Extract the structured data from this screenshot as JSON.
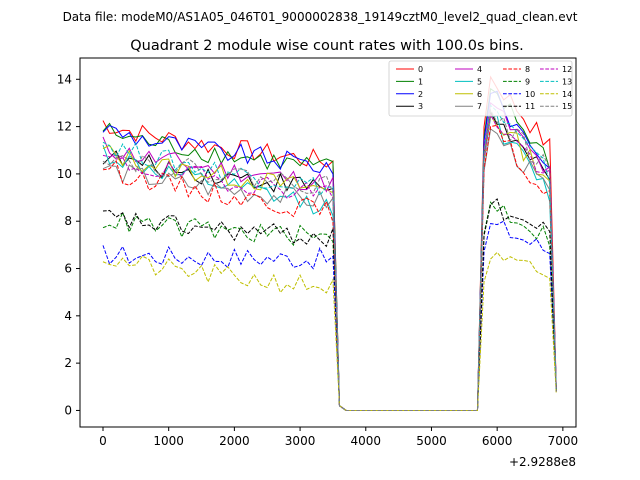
{
  "chart_data": {
    "type": "line",
    "suptitle": "Data file: modeM0/AS1A05_046T01_9000002838_19149cztM0_level2_quad_clean.evt",
    "title": "Quadrant 2 module wise count rates with 100.0s bins.",
    "xlabel": "",
    "ylabel": "",
    "x_offset_label": "+2.9288e8",
    "xlim": [
      -350,
      7200
    ],
    "ylim": [
      -0.7,
      14.9
    ],
    "xticks": [
      0,
      1000,
      2000,
      3000,
      4000,
      5000,
      6000,
      7000
    ],
    "yticks": [
      0,
      2,
      4,
      6,
      8,
      10,
      12,
      14
    ],
    "legend_position": "top-right",
    "segments": [
      {
        "x_start": 0,
        "x_end": 3500,
        "count": 36
      },
      {
        "x_start": 3600,
        "x_end": 5700,
        "count": 22
      },
      {
        "x_start": 5800,
        "x_end": 6900,
        "count": 12
      }
    ],
    "series": [
      {
        "name": "0",
        "color": "#ff0000",
        "dash": "solid",
        "start": 12.2,
        "end": 10.5,
        "peak": 14.1,
        "late": 10.8,
        "final": 0.9
      },
      {
        "name": "1",
        "color": "#008000",
        "dash": "solid",
        "start": 11.9,
        "end": 10.2,
        "peak": 13.6,
        "late": 10.2,
        "final": 0.8
      },
      {
        "name": "2",
        "color": "#0000ff",
        "dash": "solid",
        "start": 12.0,
        "end": 10.3,
        "peak": 13.4,
        "late": 10.0,
        "final": 0.9
      },
      {
        "name": "3",
        "color": "#000000",
        "dash": "solid",
        "start": 10.8,
        "end": 9.4,
        "peak": 12.6,
        "late": 9.3,
        "final": 0.8
      },
      {
        "name": "4",
        "color": "#bf00bf",
        "dash": "solid",
        "start": 11.2,
        "end": 9.6,
        "peak": 13.0,
        "late": 9.6,
        "final": 0.8
      },
      {
        "name": "5",
        "color": "#00bfbf",
        "dash": "solid",
        "start": 11.0,
        "end": 8.6,
        "peak": 12.4,
        "late": 8.8,
        "final": 0.8
      },
      {
        "name": "6",
        "color": "#bfbf00",
        "dash": "solid",
        "start": 11.0,
        "end": 9.3,
        "peak": 12.5,
        "late": 9.5,
        "final": 0.8
      },
      {
        "name": "7",
        "color": "#808080",
        "dash": "solid",
        "start": 10.3,
        "end": 8.8,
        "peak": 11.9,
        "late": 8.9,
        "final": 0.8
      },
      {
        "name": "8",
        "color": "#ff0000",
        "dash": "dashed",
        "start": 10.4,
        "end": 8.4,
        "peak": 12.0,
        "late": 8.6,
        "final": 0.8
      },
      {
        "name": "9",
        "color": "#008000",
        "dash": "dashed",
        "start": 8.1,
        "end": 7.3,
        "peak": 8.8,
        "late": 7.1,
        "final": 0.8
      },
      {
        "name": "10",
        "color": "#0000ff",
        "dash": "dashed",
        "start": 6.6,
        "end": 6.4,
        "peak": 7.9,
        "late": 6.6,
        "final": 0.8
      },
      {
        "name": "11",
        "color": "#000000",
        "dash": "dashed",
        "start": 8.2,
        "end": 7.3,
        "peak": 8.7,
        "late": 7.3,
        "final": 0.8
      },
      {
        "name": "12",
        "color": "#bf00bf",
        "dash": "dashed",
        "start": 10.7,
        "end": 9.2,
        "peak": 12.5,
        "late": 9.5,
        "final": 0.8
      },
      {
        "name": "13",
        "color": "#00bfbf",
        "dash": "dashed",
        "start": 11.4,
        "end": 9.4,
        "peak": 12.9,
        "late": 9.6,
        "final": 0.8
      },
      {
        "name": "14",
        "color": "#bfbf00",
        "dash": "dashed",
        "start": 6.5,
        "end": 5.2,
        "peak": 6.4,
        "late": 5.6,
        "final": 0.7
      },
      {
        "name": "15",
        "color": "#808080",
        "dash": "dashed",
        "start": 10.9,
        "end": 9.5,
        "peak": 12.7,
        "late": 9.8,
        "final": 0.8
      }
    ]
  }
}
